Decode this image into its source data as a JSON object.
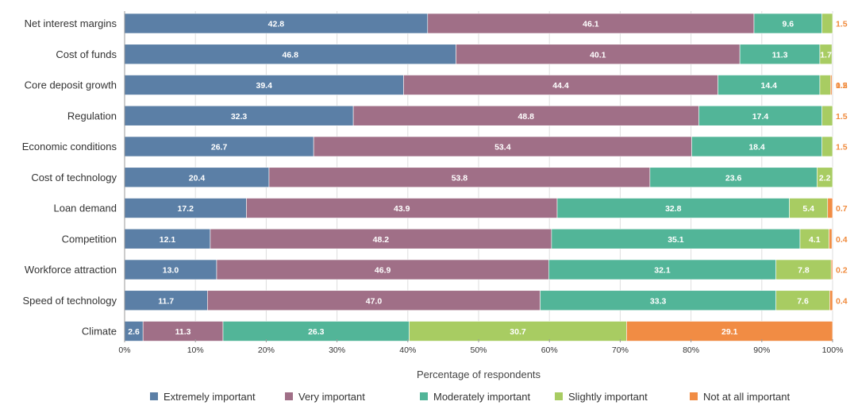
{
  "chart_data": {
    "type": "bar",
    "orientation": "horizontal",
    "stacked": true,
    "title": "",
    "xlabel": "Percentage of respondents",
    "ylabel": "",
    "xlim": [
      0,
      100
    ],
    "xticks": [
      "0%",
      "10%",
      "20%",
      "30%",
      "40%",
      "50%",
      "60%",
      "70%",
      "80%",
      "90%",
      "100%"
    ],
    "grid": true,
    "legend_position": "bottom",
    "categories": [
      "Net interest margins",
      "Cost of funds",
      "Core deposit growth",
      "Regulation",
      "Economic conditions",
      "Cost of technology",
      "Loan demand",
      "Competition",
      "Workforce attraction",
      "Speed of technology",
      "Climate"
    ],
    "series": [
      {
        "name": "Extremely important",
        "color": "#5b7fa6",
        "values": [
          42.8,
          46.8,
          39.4,
          32.3,
          26.7,
          20.4,
          17.2,
          12.1,
          13.0,
          11.7,
          2.6
        ]
      },
      {
        "name": "Very important",
        "color": "#a06f87",
        "values": [
          46.1,
          40.1,
          44.4,
          48.8,
          53.4,
          53.8,
          43.9,
          48.2,
          46.9,
          47.0,
          11.3
        ]
      },
      {
        "name": "Moderately important",
        "color": "#52b598",
        "values": [
          9.6,
          11.3,
          14.4,
          17.4,
          18.4,
          23.6,
          32.8,
          35.1,
          32.1,
          33.3,
          26.3
        ]
      },
      {
        "name": "Slightly important",
        "color": "#a8cc62",
        "values": [
          1.5,
          1.7,
          1.5,
          1.5,
          1.5,
          2.2,
          5.4,
          4.1,
          7.8,
          7.6,
          30.7
        ]
      },
      {
        "name": "Not at all important",
        "color": "#f18c44",
        "values": [
          0,
          0,
          0.2,
          0,
          0,
          0,
          0.7,
          0.4,
          0.2,
          0.4,
          29.1
        ]
      }
    ]
  }
}
